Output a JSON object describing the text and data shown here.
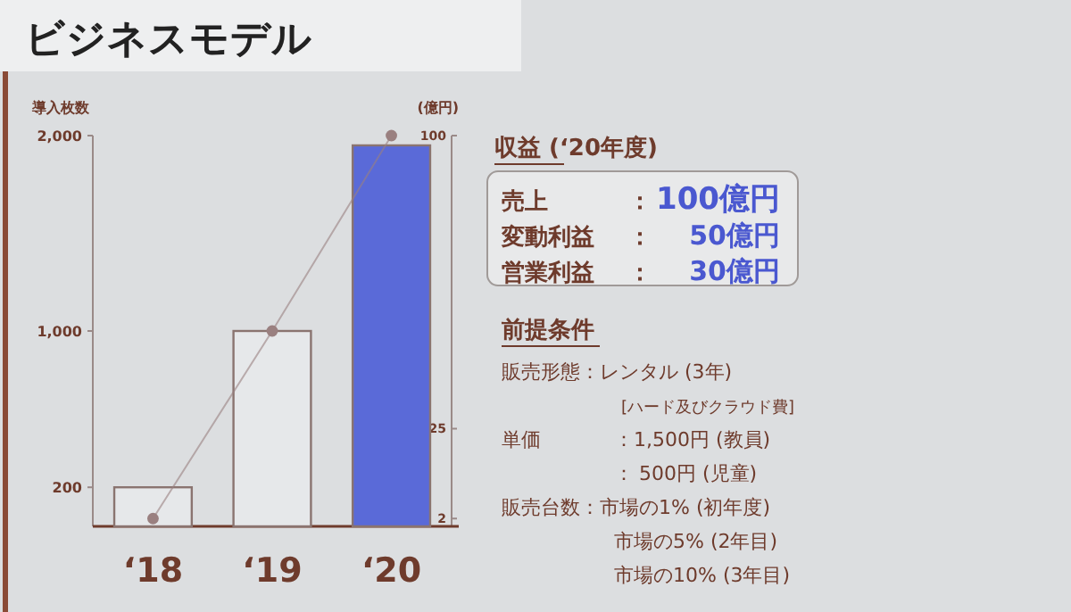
{
  "chart_data": [
    {
      "type": "bar",
      "title": "ビジネスモデル",
      "ylabel": "導入枚数",
      "y2label": "(億円)",
      "categories": [
        "‘18",
        "‘19",
        "‘20"
      ],
      "series": [
        {
          "type": "bar",
          "colors": [
            "#e6e8ea",
            "#e6e8ea",
            "#5a6ad8"
          ],
          "values": [
            200,
            1000,
            1950
          ]
        },
        {
          "type": "line",
          "axis": "y2",
          "color": "#9a8080",
          "values": [
            2,
            50,
            100
          ],
          "marker": "circle",
          "line_style": "solid"
        }
      ],
      "ylim": [
        0,
        2000
      ],
      "yticks": [
        {
          "value": 200,
          "label": "200"
        },
        {
          "value": 1000,
          "label": "1,000"
        },
        {
          "value": 2000,
          "label": "2,000"
        }
      ],
      "y2lim": [
        0,
        100
      ],
      "y2ticks": [
        2,
        25,
        100
      ],
      "grid": false
    },
    {
      "type": "other",
      "title": "収益 (‘20年度)",
      "annotations": [
        "売上",
        "：",
        "100億円",
        "変動利益",
        "：",
        "50億円",
        "営業利益",
        "：",
        "30億円"
      ]
    },
    {
      "type": "other",
      "title": "前提条件",
      "annotations": [
        "販売形態：レンタル (3年)",
        "[ハード及びクラウド費]",
        "単価",
        "：1,500円 (教員)",
        "：",
        "500円 (児童)",
        "販売台数：市場の1% (初年度)",
        "市場の5% (2年目)",
        "市場の10% (3年目)"
      ]
    }
  ]
}
